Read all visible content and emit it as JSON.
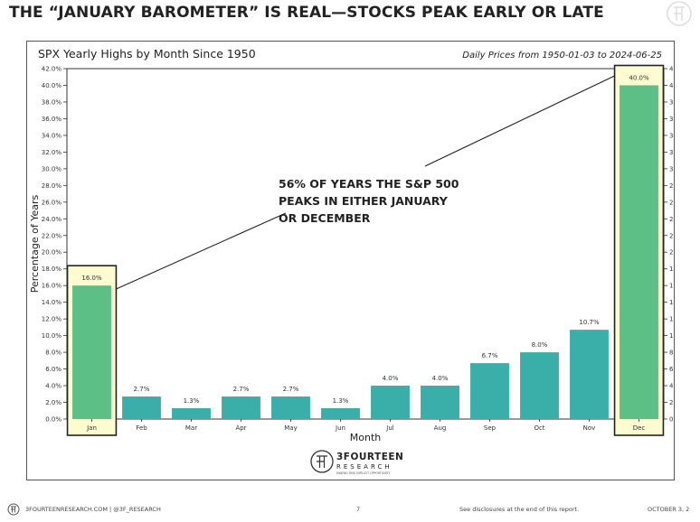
{
  "headline": "THE “JANUARY BAROMETER” IS REAL—STOCKS PEAK EARLY OR LATE",
  "footer": {
    "left_text": "3FOURTEENRESEARCH.COM | @3F_RESEARCH",
    "page_number": "7",
    "disclosure": "See disclosures at the end of this report.",
    "date": "OCTOBER 3, 2"
  },
  "colors": {
    "teal_bar": "#3aafa9",
    "green_bar": "#5cbf86",
    "highlight_fill": "#fdfbd0",
    "highlight_border": "#222222"
  },
  "chart_data": {
    "type": "bar",
    "title": "SPX Yearly Highs by Month Since 1950",
    "subtitle": "Daily Prices from 1950-01-03 to 2024-06-25",
    "xlabel": "Month",
    "ylabel": "Percentage of Years",
    "ylim": [
      0,
      42
    ],
    "ytick_step": 2,
    "y_axis_both_sides": true,
    "categories": [
      "Jan",
      "Feb",
      "Mar",
      "Apr",
      "May",
      "Jun",
      "Jul",
      "Aug",
      "Sep",
      "Oct",
      "Nov",
      "Dec"
    ],
    "values": [
      16.0,
      2.7,
      1.3,
      2.7,
      2.7,
      1.3,
      4.0,
      4.0,
      6.7,
      8.0,
      10.7,
      40.0
    ],
    "data_labels": [
      "16.0%",
      "2.7%",
      "1.3%",
      "2.7%",
      "2.7%",
      "1.3%",
      "4.0%",
      "4.0%",
      "6.7%",
      "8.0%",
      "10.7%",
      "40.0%"
    ],
    "highlighted": [
      "Jan",
      "Dec"
    ],
    "annotation": {
      "lines": [
        "56% OF YEARS THE S&P 500",
        "PEAKS IN EITHER JANUARY",
        "OR DECEMBER"
      ],
      "points_to": [
        "Jan",
        "Dec"
      ]
    },
    "logo": {
      "name": "3FOURTEEN",
      "sub": "RESEARCH",
      "tagline": "MAKING RISK EXPLICIT OPPORTUNITY"
    }
  }
}
